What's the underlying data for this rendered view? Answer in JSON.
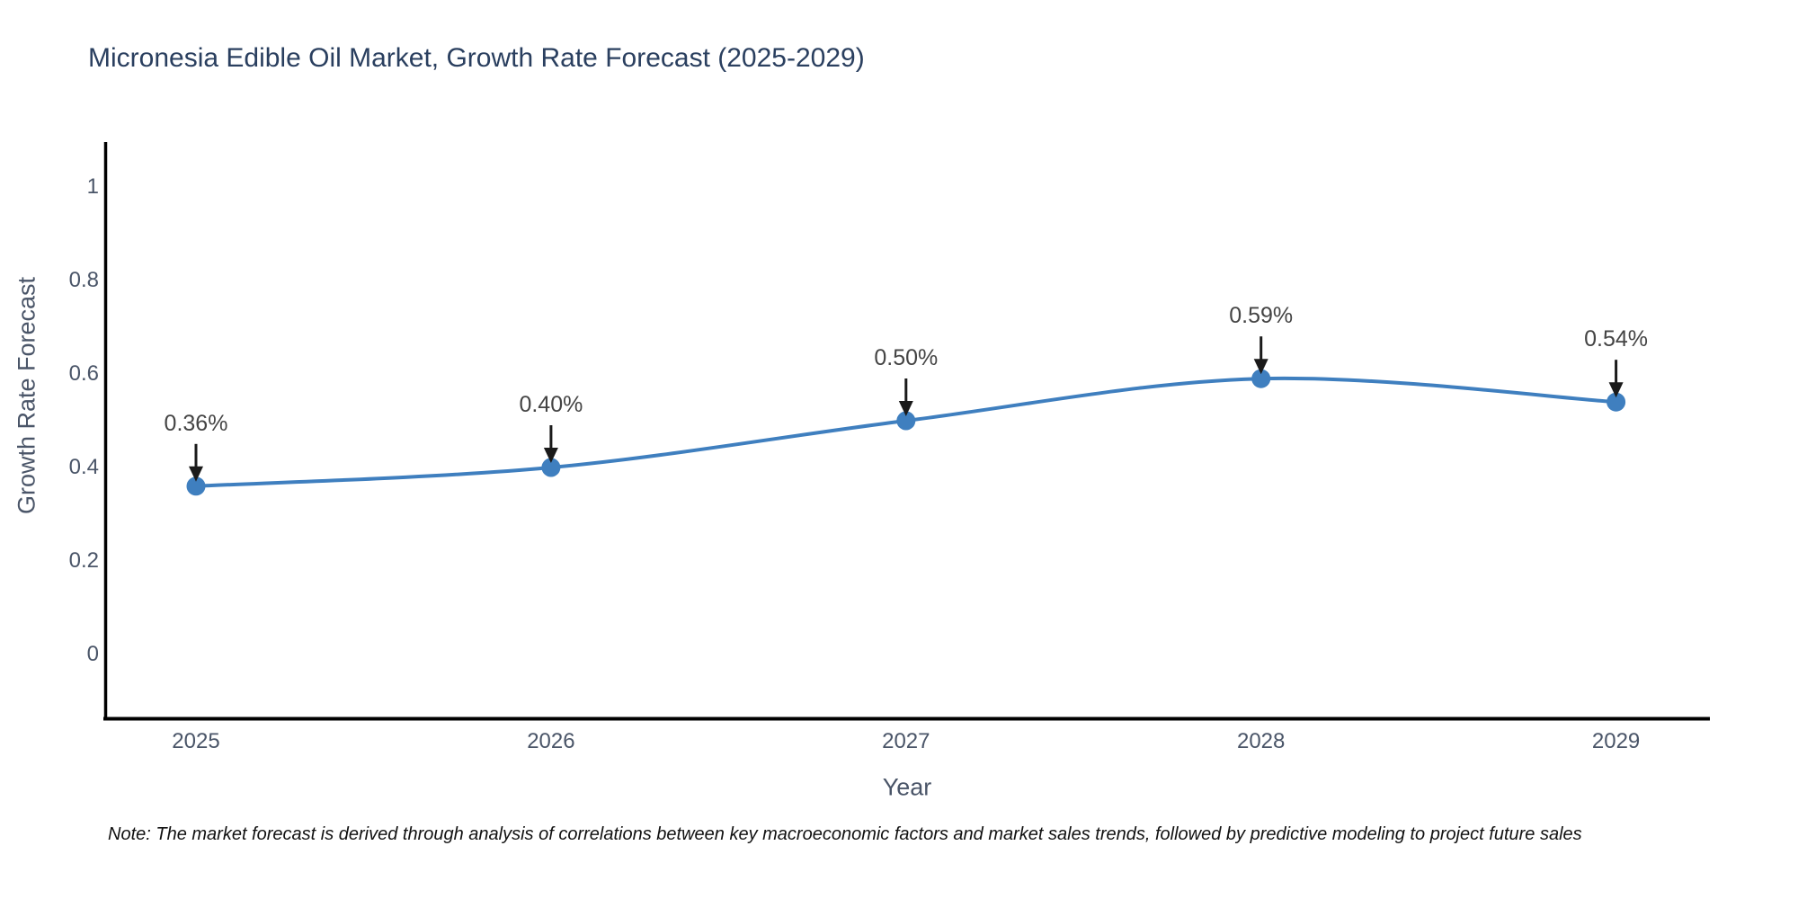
{
  "main": {
    "title": "Micronesia Edible Oil Market, Growth Rate Forecast (2025-2029)"
  },
  "chart_data": {
    "type": "line",
    "title": "Micronesia Edible Oil Market, Growth Rate Forecast (2025-2029)",
    "x": [
      2025,
      2026,
      2027,
      2028,
      2029
    ],
    "series": [
      {
        "name": "Growth Rate Forecast",
        "values": [
          0.36,
          0.4,
          0.5,
          0.59,
          0.54
        ]
      }
    ],
    "point_labels": [
      "0.36%",
      "0.40%",
      "0.50%",
      "0.59%",
      "0.54%"
    ],
    "xlabel": "Year",
    "ylabel": "Growth Rate Forecast",
    "xtick_labels": [
      "2025",
      "2026",
      "2027",
      "2028",
      "2029"
    ],
    "yticks": [
      0,
      0.2,
      0.4,
      0.6,
      0.8,
      1
    ],
    "ytick_labels": [
      "0",
      "0.2",
      "0.4",
      "0.6",
      "0.8",
      "1"
    ],
    "ylim": [
      -0.14,
      1.09
    ],
    "grid": false,
    "legend_position": "none",
    "line_color": "#3f7fbf",
    "marker_color": "#3f7fbf",
    "axis_color": "#000000",
    "arrow_color": "#1a1a1a",
    "line_shape": "spline"
  },
  "note": {
    "text": "Note: The market forecast is derived through analysis of correlations between key macroeconomic factors and market sales trends, followed by predictive modeling to project future sales"
  }
}
